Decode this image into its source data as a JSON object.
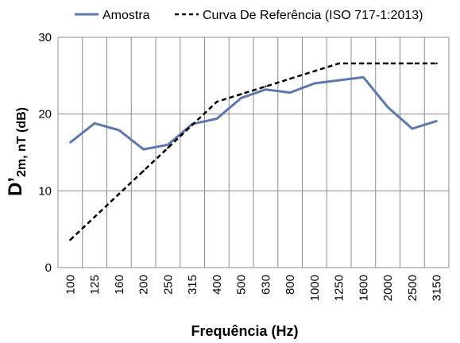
{
  "chart_data": {
    "type": "line",
    "categories": [
      "100",
      "125",
      "160",
      "200",
      "250",
      "315",
      "400",
      "500",
      "630",
      "800",
      "1000",
      "1250",
      "1600",
      "2000",
      "2500",
      "3150"
    ],
    "series": [
      {
        "name": "Amostra",
        "color": "#5B78B4",
        "dash": "solid",
        "values": [
          16.3,
          18.8,
          17.9,
          15.4,
          16.0,
          18.7,
          19.4,
          22.1,
          23.2,
          22.8,
          24.0,
          24.4,
          24.8,
          20.9,
          18.1,
          19.1
        ]
      },
      {
        "name": "Curva De Referência (ISO 717-1:2013)",
        "color": "#000000",
        "dash": "dashed",
        "values": [
          3.6,
          6.6,
          9.6,
          12.6,
          15.6,
          18.6,
          21.6,
          22.6,
          23.6,
          24.6,
          25.6,
          26.6,
          26.6,
          26.6,
          26.6,
          26.6
        ]
      }
    ],
    "xlabel": "Frequência (Hz)",
    "ylabel": {
      "main": "D’",
      "sub": "2m, nT (dB)"
    },
    "ylim": [
      0,
      30
    ],
    "yticks": [
      "0",
      "10",
      "20",
      "30"
    ],
    "grid": true,
    "legend_position": "top"
  }
}
